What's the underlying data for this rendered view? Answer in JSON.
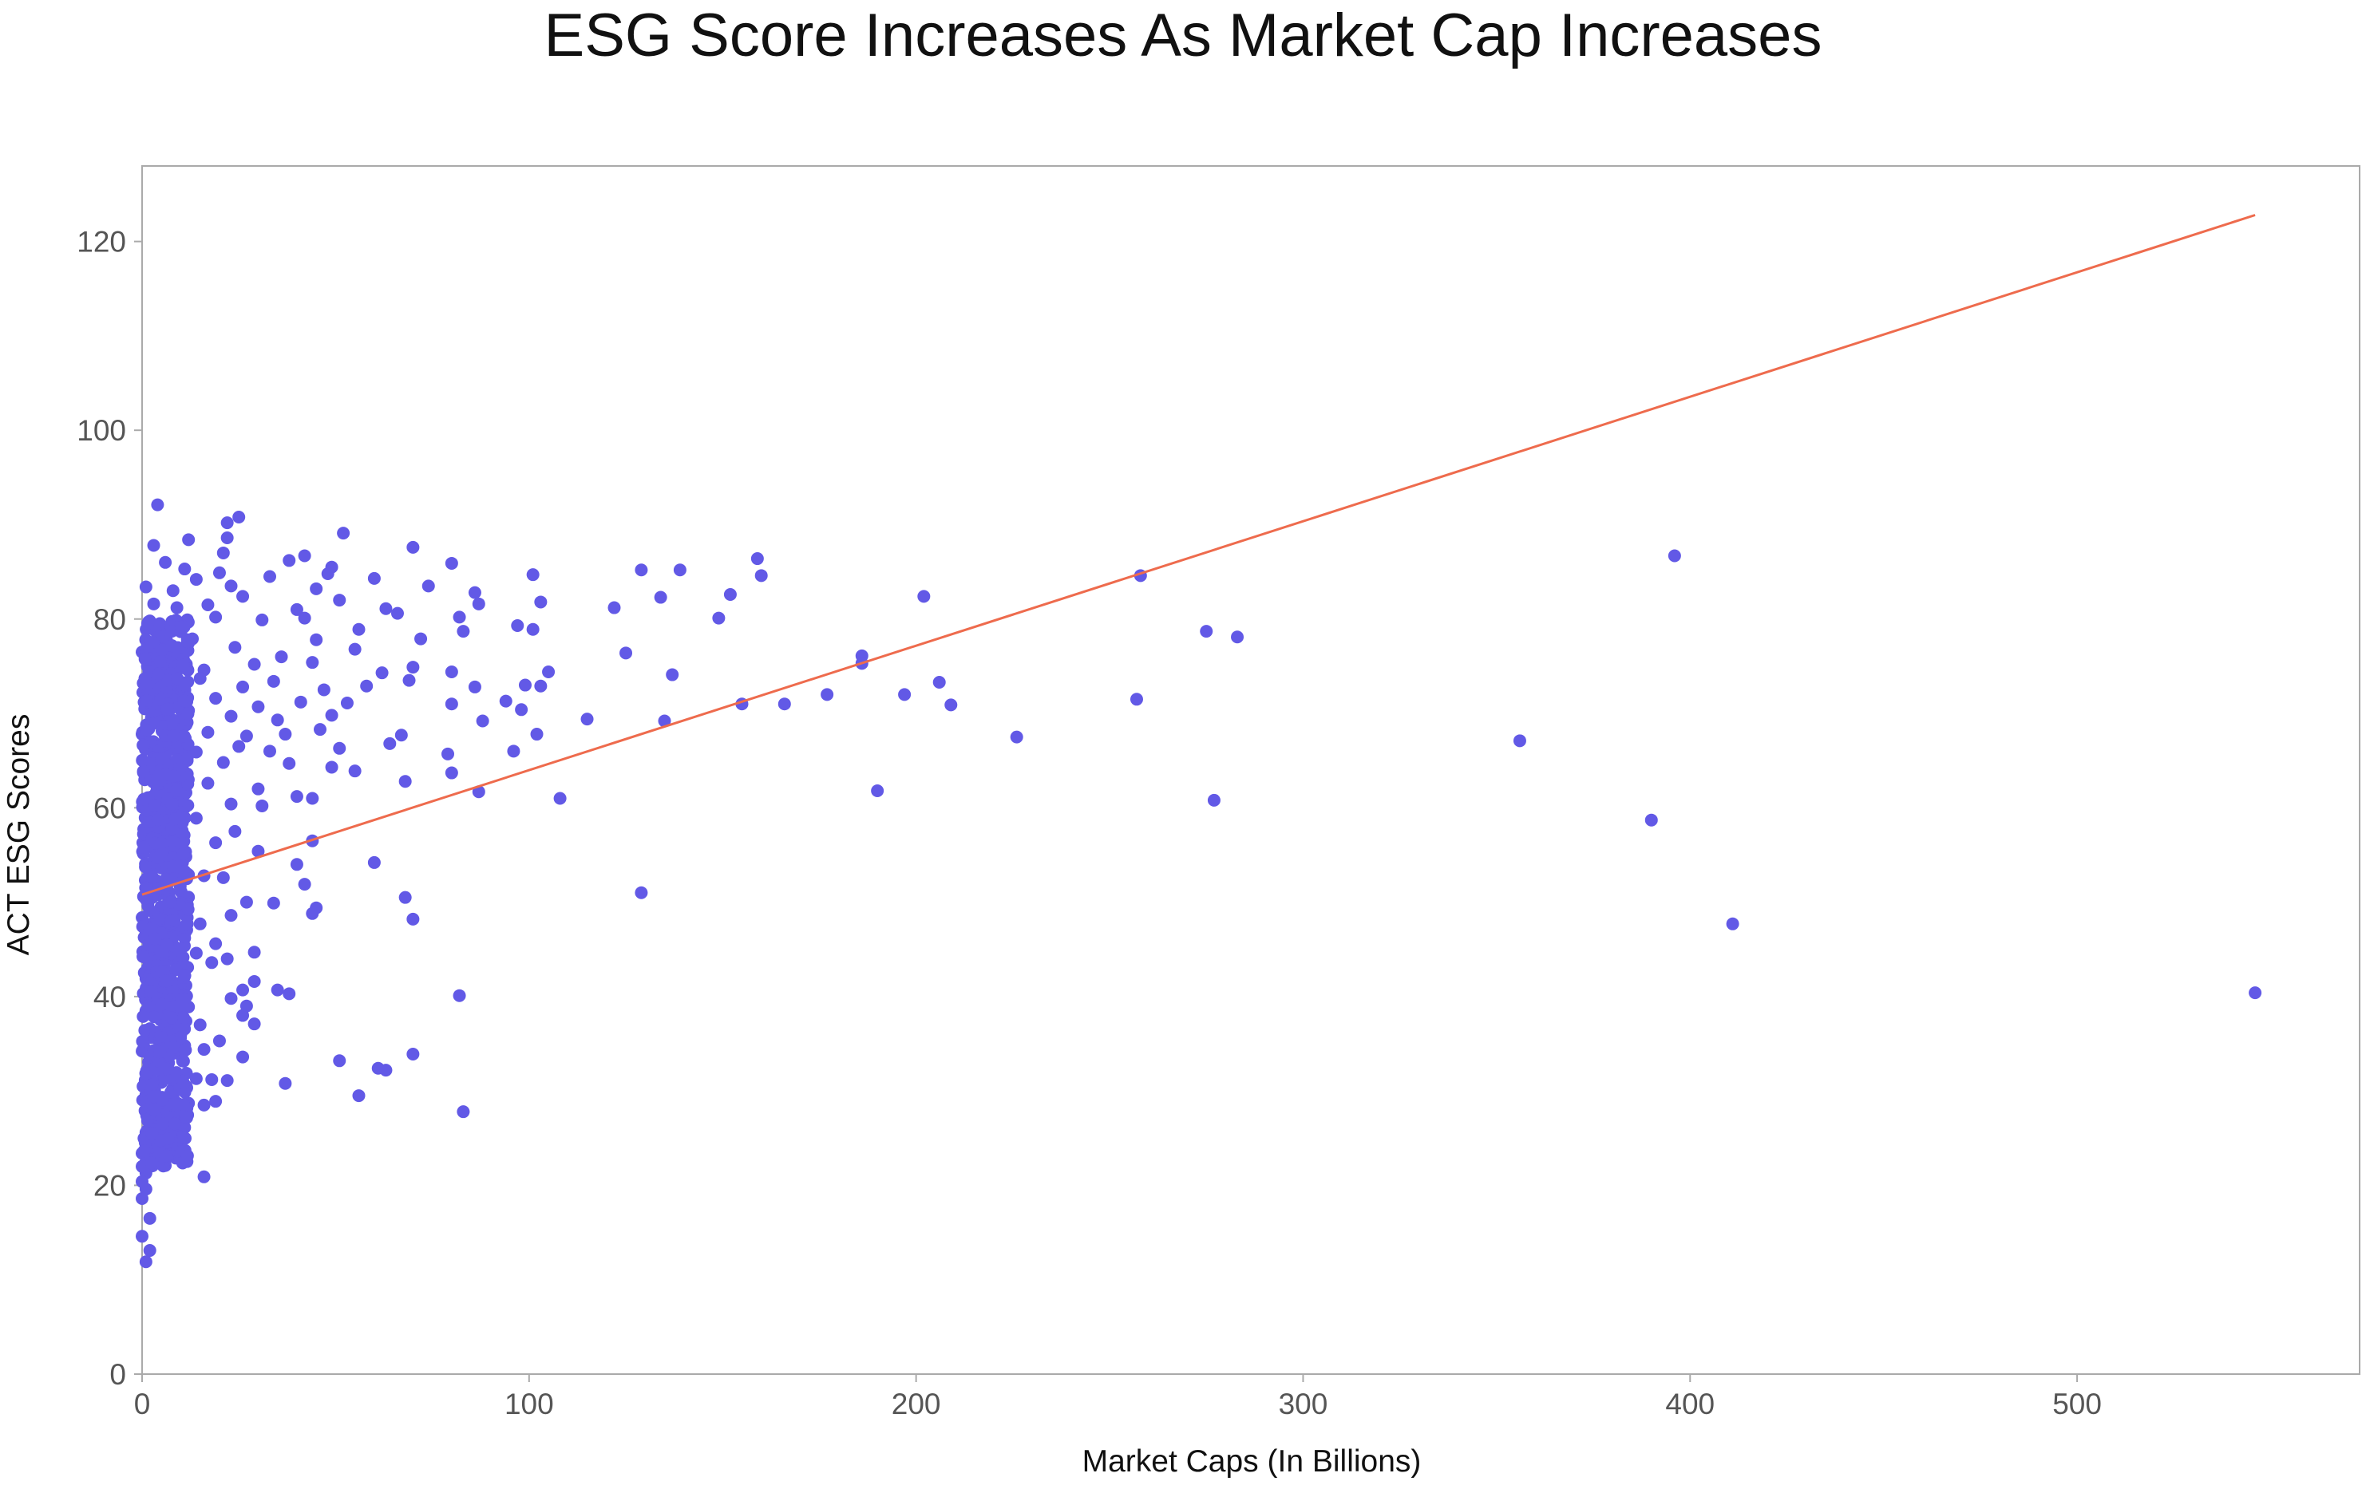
{
  "chart_data": {
    "type": "scatter",
    "title": "ESG Score Increases As Market Cap Increases",
    "xlabel": "Market Caps (In Billions)",
    "ylabel": "ACT ESG Scores",
    "xlim": [
      0,
      573
    ],
    "ylim": [
      0,
      128
    ],
    "xticks": [
      0,
      100,
      200,
      300,
      400,
      500
    ],
    "yticks": [
      0,
      20,
      40,
      60,
      80,
      100,
      120
    ],
    "grid": false,
    "colors": {
      "points": "#6259e6",
      "trend": "#ee6b4d",
      "frame": "#aaaaaa"
    },
    "trendline": {
      "x": [
        0,
        546
      ],
      "y": [
        50.8,
        122.8
      ]
    },
    "points": [
      [
        4,
        92.1
      ],
      [
        3,
        87.8
      ],
      [
        12,
        88.4
      ],
      [
        22,
        90.2
      ],
      [
        25,
        90.8
      ],
      [
        22,
        88.6
      ],
      [
        52,
        89.1
      ],
      [
        70,
        87.6
      ],
      [
        6,
        86.0
      ],
      [
        21,
        87.0
      ],
      [
        42,
        86.7
      ],
      [
        38,
        86.2
      ],
      [
        49,
        85.5
      ],
      [
        80,
        85.9
      ],
      [
        159,
        86.4
      ],
      [
        396,
        86.7
      ],
      [
        11,
        85.3
      ],
      [
        20,
        84.9
      ],
      [
        33,
        84.5
      ],
      [
        48,
        84.8
      ],
      [
        60,
        84.3
      ],
      [
        74,
        83.5
      ],
      [
        101,
        84.7
      ],
      [
        129,
        85.2
      ],
      [
        139,
        85.2
      ],
      [
        160,
        84.6
      ],
      [
        258,
        84.6
      ],
      [
        1,
        83.4
      ],
      [
        8,
        83.0
      ],
      [
        14,
        84.2
      ],
      [
        23,
        83.5
      ],
      [
        45,
        83.2
      ],
      [
        86,
        82.8
      ],
      [
        103,
        81.8
      ],
      [
        134,
        82.3
      ],
      [
        152,
        82.6
      ],
      [
        202,
        82.4
      ],
      [
        3,
        81.6
      ],
      [
        9,
        81.2
      ],
      [
        17,
        81.5
      ],
      [
        26,
        82.4
      ],
      [
        40,
        81.0
      ],
      [
        51,
        82.0
      ],
      [
        63,
        81.1
      ],
      [
        82,
        80.2
      ],
      [
        87,
        81.6
      ],
      [
        122,
        81.2
      ],
      [
        149,
        80.1
      ],
      [
        2,
        79.8
      ],
      [
        10,
        79.6
      ],
      [
        19,
        80.2
      ],
      [
        31,
        79.9
      ],
      [
        42,
        80.1
      ],
      [
        56,
        78.9
      ],
      [
        66,
        80.6
      ],
      [
        83,
        78.7
      ],
      [
        97,
        79.3
      ],
      [
        101,
        78.9
      ],
      [
        275,
        78.7
      ],
      [
        283,
        78.1
      ],
      [
        4,
        77.6
      ],
      [
        13,
        77.9
      ],
      [
        24,
        77.0
      ],
      [
        36,
        76.0
      ],
      [
        45,
        77.8
      ],
      [
        55,
        76.8
      ],
      [
        72,
        77.9
      ],
      [
        125,
        76.4
      ],
      [
        186,
        76.1
      ],
      [
        0,
        76.5
      ],
      [
        7,
        75.8
      ],
      [
        16,
        74.6
      ],
      [
        29,
        75.2
      ],
      [
        44,
        75.4
      ],
      [
        62,
        74.3
      ],
      [
        70,
        74.9
      ],
      [
        80,
        74.4
      ],
      [
        105,
        74.4
      ],
      [
        137,
        74.1
      ],
      [
        186,
        75.3
      ],
      [
        5,
        73.1
      ],
      [
        15,
        73.7
      ],
      [
        26,
        72.8
      ],
      [
        34,
        73.4
      ],
      [
        47,
        72.5
      ],
      [
        58,
        72.9
      ],
      [
        69,
        73.5
      ],
      [
        86,
        72.8
      ],
      [
        99,
        73.0
      ],
      [
        103,
        72.9
      ],
      [
        206,
        73.3
      ],
      [
        1,
        71.8
      ],
      [
        9,
        72.1
      ],
      [
        19,
        71.6
      ],
      [
        30,
        70.7
      ],
      [
        41,
        71.2
      ],
      [
        53,
        71.1
      ],
      [
        80,
        71.0
      ],
      [
        94,
        71.3
      ],
      [
        98,
        70.4
      ],
      [
        155,
        71.0
      ],
      [
        166,
        71.0
      ],
      [
        177,
        72.0
      ],
      [
        197,
        72.0
      ],
      [
        209,
        70.9
      ],
      [
        257,
        71.5
      ],
      [
        3,
        70.0
      ],
      [
        12,
        70.3
      ],
      [
        23,
        69.7
      ],
      [
        35,
        69.3
      ],
      [
        49,
        69.8
      ],
      [
        88,
        69.2
      ],
      [
        115,
        69.4
      ],
      [
        135,
        69.2
      ],
      [
        0,
        67.8
      ],
      [
        7,
        68.5
      ],
      [
        17,
        68.0
      ],
      [
        27,
        67.6
      ],
      [
        37,
        67.8
      ],
      [
        46,
        68.3
      ],
      [
        67,
        67.7
      ],
      [
        102,
        67.8
      ],
      [
        226,
        67.5
      ],
      [
        356,
        67.1
      ],
      [
        4,
        66.4
      ],
      [
        14,
        65.9
      ],
      [
        25,
        66.5
      ],
      [
        33,
        66.0
      ],
      [
        51,
        66.3
      ],
      [
        64,
        66.8
      ],
      [
        79,
        65.7
      ],
      [
        96,
        66.0
      ],
      [
        2,
        64.5
      ],
      [
        10,
        64.2
      ],
      [
        21,
        64.8
      ],
      [
        38,
        64.7
      ],
      [
        49,
        64.3
      ],
      [
        55,
        63.9
      ],
      [
        80,
        63.7
      ],
      [
        6,
        62.9
      ],
      [
        17,
        62.6
      ],
      [
        30,
        62.0
      ],
      [
        40,
        61.2
      ],
      [
        44,
        61.0
      ],
      [
        68,
        62.8
      ],
      [
        87,
        61.7
      ],
      [
        108,
        61.0
      ],
      [
        190,
        61.8
      ],
      [
        277,
        60.8
      ],
      [
        1,
        60.5
      ],
      [
        11,
        60.0
      ],
      [
        23,
        60.4
      ],
      [
        31,
        60.2
      ],
      [
        390,
        58.7
      ],
      [
        3,
        58.6
      ],
      [
        14,
        58.9
      ],
      [
        24,
        57.5
      ],
      [
        4,
        56.7
      ],
      [
        19,
        56.3
      ],
      [
        44,
        56.5
      ],
      [
        8,
        55.0
      ],
      [
        30,
        55.4
      ],
      [
        60,
        54.2
      ],
      [
        2,
        53.6
      ],
      [
        12,
        52.9
      ],
      [
        16,
        52.8
      ],
      [
        21,
        52.6
      ],
      [
        40,
        54.0
      ],
      [
        5,
        51.5
      ],
      [
        42,
        51.9
      ],
      [
        68,
        50.5
      ],
      [
        129,
        51.0
      ],
      [
        1,
        50.3
      ],
      [
        9,
        49.6
      ],
      [
        27,
        50.0
      ],
      [
        34,
        49.9
      ],
      [
        45,
        49.4
      ],
      [
        6,
        48.4
      ],
      [
        15,
        47.7
      ],
      [
        23,
        48.6
      ],
      [
        44,
        48.8
      ],
      [
        70,
        48.2
      ],
      [
        411,
        47.7
      ],
      [
        2,
        46.6
      ],
      [
        11,
        46.2
      ],
      [
        19,
        45.6
      ],
      [
        3,
        45.0
      ],
      [
        14,
        44.6
      ],
      [
        18,
        43.6
      ],
      [
        29,
        44.7
      ],
      [
        5,
        42.8
      ],
      [
        22,
        44.0
      ],
      [
        1,
        41.9
      ],
      [
        9,
        41.2
      ],
      [
        26,
        40.7
      ],
      [
        29,
        41.6
      ],
      [
        35,
        40.7
      ],
      [
        38,
        40.3
      ],
      [
        82,
        40.1
      ],
      [
        546,
        40.4
      ],
      [
        4,
        39.3
      ],
      [
        12,
        38.9
      ],
      [
        23,
        39.8
      ],
      [
        27,
        39.0
      ],
      [
        7,
        37.8
      ],
      [
        15,
        37.0
      ],
      [
        26,
        38.0
      ],
      [
        29,
        37.1
      ],
      [
        2,
        36.6
      ],
      [
        10,
        36.0
      ],
      [
        20,
        35.3
      ],
      [
        11,
        34.8
      ],
      [
        16,
        34.4
      ],
      [
        26,
        33.6
      ],
      [
        51,
        33.2
      ],
      [
        70,
        33.9
      ],
      [
        3,
        32.8
      ],
      [
        8,
        31.9
      ],
      [
        22,
        31.1
      ],
      [
        61,
        32.4
      ],
      [
        63,
        32.2
      ],
      [
        5,
        30.9
      ],
      [
        14,
        31.3
      ],
      [
        18,
        31.2
      ],
      [
        37,
        30.8
      ],
      [
        56,
        29.5
      ],
      [
        1,
        29.6
      ],
      [
        8,
        29.0
      ],
      [
        12,
        28.7
      ],
      [
        16,
        28.5
      ],
      [
        19,
        28.9
      ],
      [
        83,
        27.8
      ],
      [
        2,
        27.1
      ],
      [
        5,
        26.7
      ],
      [
        1,
        25.6
      ],
      [
        3,
        24.8
      ],
      [
        6,
        24.5
      ],
      [
        0,
        23.4
      ],
      [
        5,
        23.5
      ],
      [
        2,
        22.0
      ],
      [
        6,
        22.1
      ],
      [
        1,
        21.3
      ],
      [
        16,
        20.9
      ],
      [
        0,
        20.4
      ],
      [
        1,
        19.6
      ],
      [
        0,
        18.6
      ],
      [
        2,
        16.5
      ],
      [
        0,
        14.6
      ],
      [
        2,
        13.1
      ],
      [
        1,
        11.9
      ]
    ]
  }
}
